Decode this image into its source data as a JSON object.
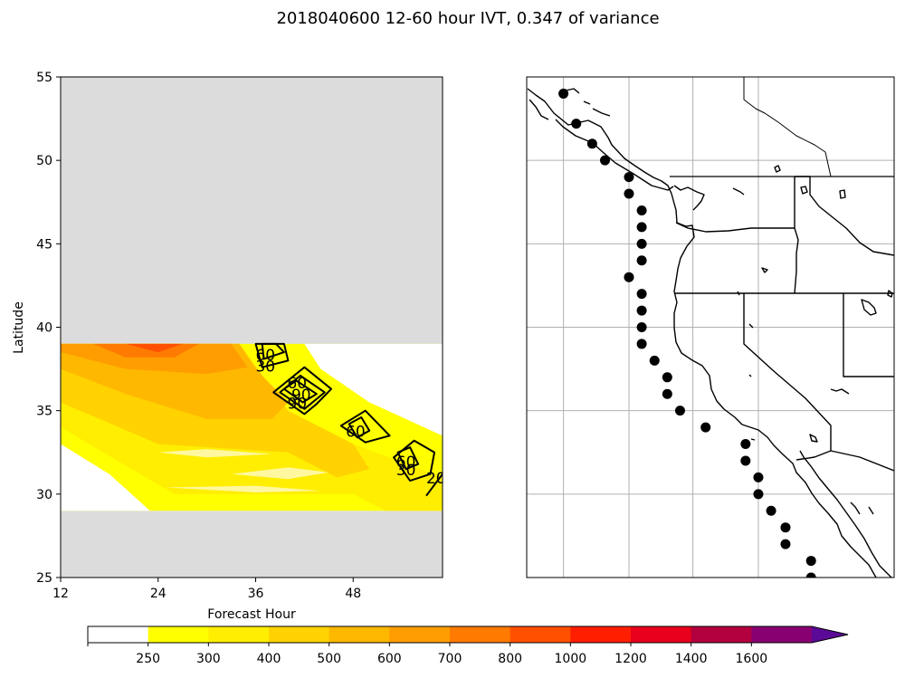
{
  "figure": {
    "title": "2018040600 12-60 hour IVT, 0.347 of variance"
  },
  "chart_data": [
    {
      "type": "heatmap",
      "title": "",
      "xlabel": "Forecast Hour",
      "ylabel": "Latitude",
      "xlim": [
        12,
        59
      ],
      "ylim": [
        25,
        55
      ],
      "xticks": [
        12,
        24,
        36,
        48
      ],
      "yticks": [
        25,
        30,
        35,
        40,
        45,
        50,
        55
      ],
      "data_extent_lat": [
        29,
        39
      ],
      "background_color": "#dcdcdc",
      "ivt_filled": [
        {
          "level": 300,
          "points": [
            [
              12,
              34
            ],
            [
              26,
              30
            ],
            [
              40,
              30
            ],
            [
              48,
              30
            ],
            [
              52,
              29
            ],
            [
              59,
              29
            ],
            [
              59,
              31
            ],
            [
              48,
              33
            ],
            [
              36,
              36
            ],
            [
              34,
              39
            ],
            [
              12,
              39
            ]
          ]
        },
        {
          "level": 400,
          "points": [
            [
              12,
              35.5
            ],
            [
              24,
              33
            ],
            [
              40,
              32.5
            ],
            [
              46,
              31
            ],
            [
              50,
              31.5
            ],
            [
              48,
              33
            ],
            [
              40,
              35
            ],
            [
              34,
              39
            ],
            [
              12,
              39
            ]
          ]
        },
        {
          "level": 500,
          "points": [
            [
              12,
              37.5
            ],
            [
              20,
              36
            ],
            [
              30,
              34.5
            ],
            [
              38,
              34.5
            ],
            [
              40,
              35.5
            ],
            [
              36,
              37.5
            ],
            [
              34,
              39
            ],
            [
              12,
              39
            ]
          ]
        },
        {
          "level": 600,
          "points": [
            [
              12,
              38.5
            ],
            [
              20,
              37.5
            ],
            [
              30,
              37.2
            ],
            [
              35,
              37.6
            ],
            [
              33,
              39
            ],
            [
              12,
              39
            ]
          ]
        },
        {
          "level": 700,
          "points": [
            [
              16,
              39
            ],
            [
              20,
              38.2
            ],
            [
              26,
              38.2
            ],
            [
              29,
              39
            ]
          ]
        },
        {
          "level": 800,
          "points": [
            [
              20,
              39
            ],
            [
              24,
              38.5
            ],
            [
              27,
              39
            ]
          ]
        }
      ],
      "ivt_white_gaps": [
        {
          "points": [
            [
              24,
              32.5
            ],
            [
              30,
              32.2
            ],
            [
              38,
              32.4
            ],
            [
              30,
              32.7
            ]
          ]
        },
        {
          "points": [
            [
              33,
              31.2
            ],
            [
              40,
              30.9
            ],
            [
              45,
              31.3
            ],
            [
              40,
              31.6
            ]
          ]
        },
        {
          "points": [
            [
              25,
              30.4
            ],
            [
              36,
              30.1
            ],
            [
              44,
              30.2
            ],
            [
              36,
              30.5
            ]
          ]
        }
      ],
      "contours": [
        {
          "label": "60",
          "points": [
            [
              36.8,
              39
            ],
            [
              37,
              38.1
            ],
            [
              39.5,
              38.5
            ],
            [
              38.5,
              39
            ]
          ]
        },
        {
          "label": "30",
          "points": [
            [
              36,
              39
            ],
            [
              36.8,
              37.6
            ],
            [
              40,
              38
            ],
            [
              39.5,
              39
            ]
          ]
        },
        {
          "label": "90",
          "points": [
            [
              39.5,
              36.3
            ],
            [
              41,
              36.8
            ],
            [
              43.5,
              36
            ],
            [
              41.8,
              35.5
            ]
          ]
        },
        {
          "label": "60",
          "points": [
            [
              39,
              36.1
            ],
            [
              41.5,
              37.1
            ],
            [
              44.5,
              36.1
            ],
            [
              42,
              35.1
            ]
          ]
        },
        {
          "label": "30",
          "points": [
            [
              38.2,
              36.1
            ],
            [
              42,
              37.6
            ],
            [
              45.3,
              36.3
            ],
            [
              43.5,
              35.4
            ],
            [
              42,
              34.8
            ]
          ]
        },
        {
          "label": "60",
          "points": [
            [
              47.5,
              34.2
            ],
            [
              49,
              34.6
            ],
            [
              50,
              33.8
            ],
            [
              48.5,
              33.4
            ]
          ]
        },
        {
          "label": "30",
          "points": [
            [
              46.5,
              34.1
            ],
            [
              49.5,
              35
            ],
            [
              52.5,
              33.5
            ],
            [
              49.5,
              33.1
            ]
          ]
        },
        {
          "label": "60",
          "points": [
            [
              53.5,
              32.5
            ],
            [
              55,
              32.8
            ],
            [
              56,
              31.8
            ],
            [
              54.5,
              31.5
            ]
          ]
        },
        {
          "label": "30",
          "points": [
            [
              53,
              32.2
            ],
            [
              55.5,
              33.2
            ],
            [
              58,
              32.5
            ],
            [
              57.5,
              31.2
            ],
            [
              55,
              30.8
            ]
          ]
        },
        {
          "label": "20",
          "points": [
            [
              57,
              29.9
            ],
            [
              59,
              31.2
            ]
          ]
        }
      ],
      "contour_labels": [
        {
          "text": "60",
          "x": 37.2,
          "y": 38.3
        },
        {
          "text": "30",
          "x": 37.2,
          "y": 37.6
        },
        {
          "text": "90",
          "x": 41.6,
          "y": 35.9
        },
        {
          "text": "60",
          "x": 41.1,
          "y": 36.6
        },
        {
          "text": "90",
          "x": 41.1,
          "y": 35.4
        },
        {
          "text": "60",
          "x": 48.3,
          "y": 33.7
        },
        {
          "text": "60",
          "x": 54.5,
          "y": 31.9
        },
        {
          "text": "30",
          "x": 54.5,
          "y": 31.4
        },
        {
          "text": "20",
          "x": 58.2,
          "y": 30.9
        }
      ]
    },
    {
      "type": "scatter",
      "title": "",
      "lon_range": [
        -131,
        -108
      ],
      "lat_range": [
        25,
        55
      ],
      "gridlines_lon": [
        -128.7,
        -124.6,
        -120.6,
        -116.5
      ],
      "gridlines_lat": [
        30,
        35,
        40,
        45,
        50
      ],
      "points": [
        {
          "lon": -128.7,
          "lat": 54
        },
        {
          "lon": -127.9,
          "lat": 52.2
        },
        {
          "lon": -126.9,
          "lat": 51
        },
        {
          "lon": -126.1,
          "lat": 50
        },
        {
          "lon": -124.6,
          "lat": 49
        },
        {
          "lon": -124.6,
          "lat": 48
        },
        {
          "lon": -123.8,
          "lat": 47
        },
        {
          "lon": -123.8,
          "lat": 46
        },
        {
          "lon": -123.8,
          "lat": 45
        },
        {
          "lon": -123.8,
          "lat": 44
        },
        {
          "lon": -124.6,
          "lat": 43
        },
        {
          "lon": -123.8,
          "lat": 42
        },
        {
          "lon": -123.8,
          "lat": 41
        },
        {
          "lon": -123.8,
          "lat": 40
        },
        {
          "lon": -123.8,
          "lat": 39
        },
        {
          "lon": -123.0,
          "lat": 38
        },
        {
          "lon": -122.2,
          "lat": 37
        },
        {
          "lon": -122.2,
          "lat": 36
        },
        {
          "lon": -121.4,
          "lat": 35
        },
        {
          "lon": -119.8,
          "lat": 34
        },
        {
          "lon": -117.3,
          "lat": 33
        },
        {
          "lon": -117.3,
          "lat": 32
        },
        {
          "lon": -116.5,
          "lat": 31
        },
        {
          "lon": -116.5,
          "lat": 30
        },
        {
          "lon": -115.7,
          "lat": 29
        },
        {
          "lon": -114.8,
          "lat": 28
        },
        {
          "lon": -114.8,
          "lat": 27
        },
        {
          "lon": -113.2,
          "lat": 26
        },
        {
          "lon": -113.2,
          "lat": 25
        }
      ]
    }
  ],
  "colorbar": {
    "ticks": [
      "250",
      "300",
      "400",
      "500",
      "600",
      "700",
      "800",
      "1000",
      "1200",
      "1400",
      "1600"
    ],
    "colors": [
      "#ffffff",
      "#ffff00",
      "#ffee00",
      "#ffd200",
      "#ffb800",
      "#ff9d00",
      "#ff7a00",
      "#ff5000",
      "#ff1e00",
      "#e8001c",
      "#b3003e",
      "#870072",
      "#5a0a96"
    ]
  }
}
